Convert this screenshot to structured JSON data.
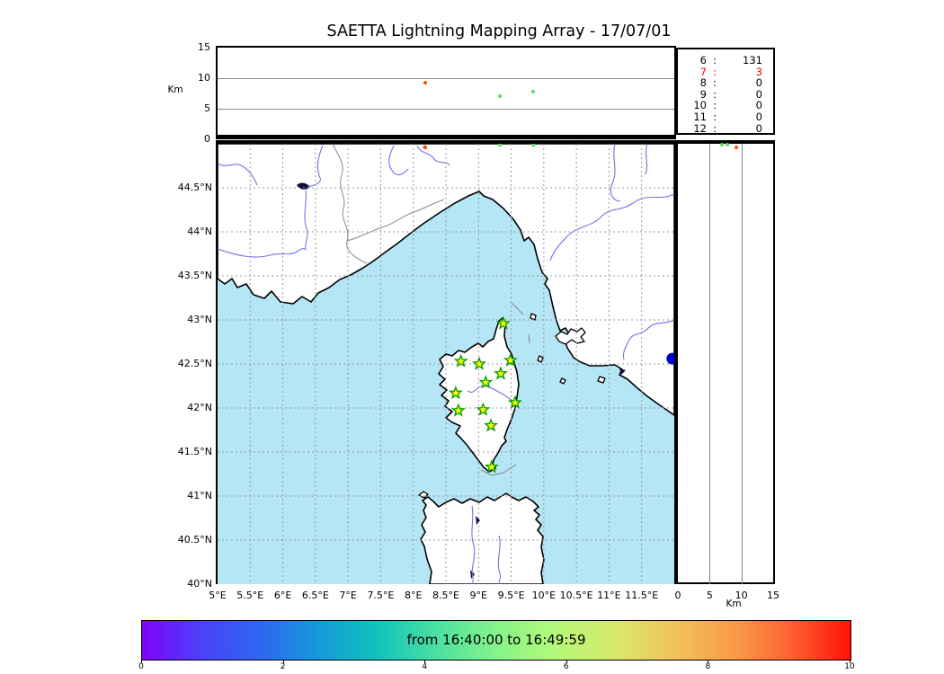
{
  "title": "SAETTA Lightning Mapping Array - 17/07/01",
  "chart_data": {
    "type": "scatter",
    "title": "SAETTA Lightning Mapping Array - 17/07/01",
    "map": {
      "lon_range": [
        5,
        12
      ],
      "lat_range": [
        40,
        45
      ],
      "lon_ticks": [
        {
          "v": 5,
          "label": "5°E"
        },
        {
          "v": 5.5,
          "label": "5.5°E"
        },
        {
          "v": 6,
          "label": "6°E"
        },
        {
          "v": 6.5,
          "label": "6.5°E"
        },
        {
          "v": 7,
          "label": "7°E"
        },
        {
          "v": 7.5,
          "label": "7.5°E"
        },
        {
          "v": 8,
          "label": "8°E"
        },
        {
          "v": 8.5,
          "label": "8.5°E"
        },
        {
          "v": 9,
          "label": "9°E"
        },
        {
          "v": 9.5,
          "label": "9.5°E"
        },
        {
          "v": 10,
          "label": "10°E"
        },
        {
          "v": 10.5,
          "label": "10.5°E"
        },
        {
          "v": 11,
          "label": "11°E"
        },
        {
          "v": 11.5,
          "label": "11.5°E"
        }
      ],
      "lat_ticks": [
        {
          "v": 40,
          "label": "40°N"
        },
        {
          "v": 40.5,
          "label": "40.5°N"
        },
        {
          "v": 41,
          "label": "41°N"
        },
        {
          "v": 41.5,
          "label": "41.5°N"
        },
        {
          "v": 42,
          "label": "42°N"
        },
        {
          "v": 42.5,
          "label": "42.5°N"
        },
        {
          "v": 43,
          "label": "43°N"
        },
        {
          "v": 43.5,
          "label": "43.5°N"
        },
        {
          "v": 44,
          "label": "44°N"
        },
        {
          "v": 44.5,
          "label": "44.5°N"
        }
      ],
      "sea_color": "#b5e6f5",
      "land_color": "#ffffff",
      "river_color": "#7273e2",
      "border_color": "#888888",
      "grid_color": "#999999"
    },
    "altitude_axis": {
      "unit": "Km",
      "range": [
        0,
        15
      ],
      "ticks": [
        0,
        5,
        10,
        15
      ],
      "gridlines": [
        5,
        10
      ]
    },
    "stations": [
      [
        9.38,
        42.96
      ],
      [
        8.73,
        42.53
      ],
      [
        9.01,
        42.5
      ],
      [
        9.49,
        42.54
      ],
      [
        9.34,
        42.39
      ],
      [
        9.11,
        42.29
      ],
      [
        8.65,
        42.17
      ],
      [
        9.56,
        42.06
      ],
      [
        9.07,
        41.98
      ],
      [
        8.69,
        41.97
      ],
      [
        9.19,
        41.8
      ],
      [
        9.2,
        41.33
      ]
    ],
    "station_style": {
      "fill": "#ffff00",
      "stroke": "#009900"
    },
    "flashes": [
      {
        "lon": 8.18,
        "lat": 44.96,
        "alt_km": 9.2,
        "color": "#ff4f00"
      },
      {
        "lon": 9.33,
        "lat": 44.99,
        "alt_km": 7.0,
        "color": "#66d966"
      },
      {
        "lon": 9.84,
        "lat": 44.99,
        "alt_km": 7.8,
        "color": "#66d966"
      }
    ],
    "map_marker": {
      "lon": 11.97,
      "lat": 42.56,
      "color": "#0000cc"
    },
    "histogram": {
      "rows": [
        {
          "alt": "6",
          "count": "131",
          "color": "#000000"
        },
        {
          "alt": "7",
          "count": "3",
          "color": "#ff0000"
        },
        {
          "alt": "8",
          "count": "0",
          "color": "#000000"
        },
        {
          "alt": "9",
          "count": "0",
          "color": "#000000"
        },
        {
          "alt": "10",
          "count": "0",
          "color": "#000000"
        },
        {
          "alt": "11",
          "count": "0",
          "color": "#000000"
        },
        {
          "alt": "12",
          "count": "0",
          "color": "#000000"
        }
      ]
    },
    "colorbar": {
      "label": "from 16:40:00 to 16:49:59",
      "min": 0,
      "max": 10,
      "ticks": [
        0,
        2,
        4,
        6,
        8,
        10
      ],
      "gradient": [
        "#7f03fa",
        "#4b41f7",
        "#2e66f0",
        "#149bd8",
        "#12c3bb",
        "#4ce0a2",
        "#85f38a",
        "#b5f97a",
        "#d9e96a",
        "#efc35a",
        "#f99c49",
        "#fd6030",
        "#ff1205"
      ]
    }
  }
}
